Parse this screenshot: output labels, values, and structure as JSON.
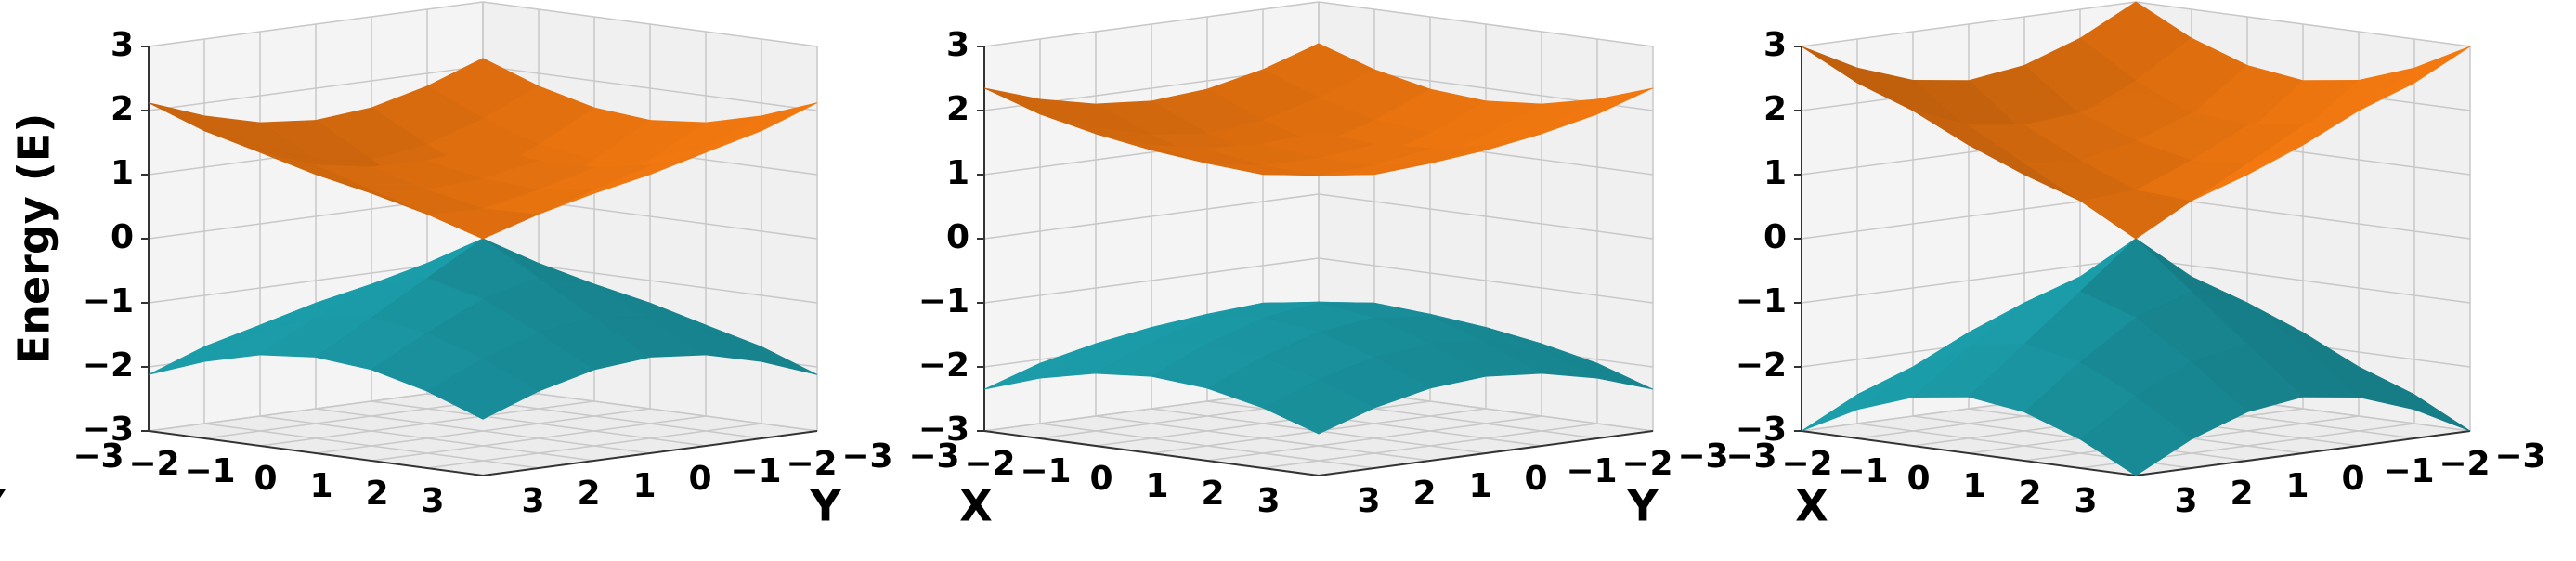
{
  "chart_data": [
    {
      "type": "surface",
      "zlabel": "Energy (E)",
      "xlabel": "X",
      "ylabel": "Y",
      "x": [
        -3,
        -2,
        -1,
        0,
        1,
        2,
        3
      ],
      "y": [
        -3,
        -2,
        -1,
        0,
        1,
        2,
        3
      ],
      "xlim": [
        -3,
        3
      ],
      "ylim": [
        -3,
        3
      ],
      "zlim": [
        -3,
        3
      ],
      "xticks": [
        {
          "value": -3,
          "label": "−3"
        },
        {
          "value": -2,
          "label": "−2"
        },
        {
          "value": -1,
          "label": "−1"
        },
        0,
        1,
        2,
        3
      ],
      "yticks": [
        {
          "value": -3,
          "label": "−3"
        },
        {
          "value": -2,
          "label": "−2"
        },
        {
          "value": -1,
          "label": "−1"
        },
        0,
        1,
        2,
        3
      ],
      "zticks": [
        {
          "value": -3,
          "label": "−3"
        },
        {
          "value": -2,
          "label": "−2"
        },
        {
          "value": -1,
          "label": "−1"
        },
        0,
        1,
        2,
        3
      ],
      "grid": true,
      "series": [
        {
          "color": "#1a96a2",
          "z": [
            [
              -2.12,
              -1.8,
              -1.58,
              -1.5,
              -1.58,
              -1.8,
              -2.12
            ],
            [
              -1.8,
              -1.41,
              -1.12,
              -1,
              -1.12,
              -1.41,
              -1.8
            ],
            [
              -1.58,
              -1.12,
              -0.71,
              -0.5,
              -0.71,
              -1.12,
              -1.58
            ],
            [
              -1.5,
              -1,
              -0.5,
              0,
              -0.5,
              -1,
              -1.5
            ],
            [
              -1.58,
              -1.12,
              -0.71,
              -0.5,
              -0.71,
              -1.12,
              -1.58
            ],
            [
              -1.8,
              -1.41,
              -1.12,
              -1,
              -1.12,
              -1.41,
              -1.8
            ],
            [
              -2.12,
              -1.8,
              -1.58,
              -1.5,
              -1.58,
              -1.8,
              -2.12
            ]
          ]
        },
        {
          "color": "#e8730f",
          "z": [
            [
              2.12,
              1.8,
              1.58,
              1.5,
              1.58,
              1.8,
              2.12
            ],
            [
              1.8,
              1.41,
              1.12,
              1,
              1.12,
              1.41,
              1.8
            ],
            [
              1.58,
              1.12,
              0.71,
              0.5,
              0.71,
              1.12,
              1.58
            ],
            [
              1.5,
              1,
              0.5,
              0,
              0.5,
              1,
              1.5
            ],
            [
              1.58,
              1.12,
              0.71,
              0.5,
              0.71,
              1.12,
              1.58
            ],
            [
              1.8,
              1.41,
              1.12,
              1,
              1.12,
              1.41,
              1.8
            ],
            [
              2.12,
              1.8,
              1.58,
              1.5,
              1.58,
              1.8,
              2.12
            ]
          ]
        }
      ]
    },
    {
      "type": "surface",
      "xlabel": "X",
      "ylabel": "Y",
      "x": [
        -3,
        -2,
        -1,
        0,
        1,
        2,
        3
      ],
      "y": [
        -3,
        -2,
        -1,
        0,
        1,
        2,
        3
      ],
      "xlim": [
        -3,
        3
      ],
      "ylim": [
        -3,
        3
      ],
      "zlim": [
        -3,
        3
      ],
      "xticks": [
        {
          "value": -3,
          "label": "−3"
        },
        {
          "value": -2,
          "label": "−2"
        },
        {
          "value": -1,
          "label": "−1"
        },
        0,
        1,
        2,
        3
      ],
      "yticks": [
        {
          "value": -3,
          "label": "−3"
        },
        {
          "value": -2,
          "label": "−2"
        },
        {
          "value": -1,
          "label": "−1"
        },
        0,
        1,
        2,
        3
      ],
      "zticks": [
        {
          "value": -3,
          "label": "−3"
        },
        {
          "value": -2,
          "label": "−2"
        },
        {
          "value": -1,
          "label": "−1"
        },
        0,
        1,
        2,
        3
      ],
      "grid": true,
      "series": [
        {
          "color": "#1a96a2",
          "z": [
            [
              -2.35,
              -2.06,
              -1.87,
              -1.8,
              -1.87,
              -2.06,
              -2.35
            ],
            [
              -2.06,
              -1.73,
              -1.5,
              -1.41,
              -1.5,
              -1.73,
              -2.06
            ],
            [
              -1.87,
              -1.5,
              -1.22,
              -1.12,
              -1.22,
              -1.5,
              -1.87
            ],
            [
              -1.8,
              -1.41,
              -1.12,
              -1,
              -1.12,
              -1.41,
              -1.8
            ],
            [
              -1.87,
              -1.5,
              -1.22,
              -1.12,
              -1.22,
              -1.5,
              -1.87
            ],
            [
              -2.06,
              -1.73,
              -1.5,
              -1.41,
              -1.5,
              -1.73,
              -2.06
            ],
            [
              -2.35,
              -2.06,
              -1.87,
              -1.8,
              -1.87,
              -2.06,
              -2.35
            ]
          ]
        },
        {
          "color": "#e8730f",
          "z": [
            [
              2.35,
              2.06,
              1.87,
              1.8,
              1.87,
              2.06,
              2.35
            ],
            [
              2.06,
              1.73,
              1.5,
              1.41,
              1.5,
              1.73,
              2.06
            ],
            [
              1.87,
              1.5,
              1.22,
              1.12,
              1.22,
              1.5,
              1.87
            ],
            [
              1.8,
              1.41,
              1.12,
              1,
              1.12,
              1.41,
              1.8
            ],
            [
              1.87,
              1.5,
              1.22,
              1.12,
              1.22,
              1.5,
              1.87
            ],
            [
              2.06,
              1.73,
              1.5,
              1.41,
              1.5,
              1.73,
              2.06
            ],
            [
              2.35,
              2.06,
              1.87,
              1.8,
              1.87,
              2.06,
              2.35
            ]
          ]
        }
      ]
    },
    {
      "type": "surface",
      "xlabel": "X",
      "ylabel": "Y",
      "x": [
        -3,
        -2,
        -1,
        0,
        1,
        2,
        3
      ],
      "y": [
        -3,
        -2,
        -1,
        0,
        1,
        2,
        3
      ],
      "xlim": [
        -3,
        3
      ],
      "ylim": [
        -3,
        3
      ],
      "zlim": [
        -3,
        3
      ],
      "xticks": [
        {
          "value": -3,
          "label": "−3"
        },
        {
          "value": -2,
          "label": "−2"
        },
        {
          "value": -1,
          "label": "−1"
        },
        0,
        1,
        2,
        3
      ],
      "yticks": [
        {
          "value": -3,
          "label": "−3"
        },
        {
          "value": -2,
          "label": "−2"
        },
        {
          "value": -1,
          "label": "−1"
        },
        0,
        1,
        2,
        3
      ],
      "zticks": [
        {
          "value": -3,
          "label": "−3"
        },
        {
          "value": -2,
          "label": "−2"
        },
        {
          "value": -1,
          "label": "−1"
        },
        0,
        1,
        2,
        3
      ],
      "grid": true,
      "series": [
        {
          "color": "#1a96a2",
          "z": [
            [
              -3,
              -2.55,
              -2.24,
              -2.12,
              -2.24,
              -2.55,
              -3
            ],
            [
              -2.55,
              -2,
              -1.58,
              -1.41,
              -1.58,
              -2,
              -2.55
            ],
            [
              -2.24,
              -1.58,
              -1,
              -0.71,
              -1,
              -1.58,
              -2.24
            ],
            [
              -2.12,
              -1.41,
              -0.71,
              0,
              -0.71,
              -1.41,
              -2.12
            ],
            [
              -2.24,
              -1.58,
              -1,
              -0.71,
              -1,
              -1.58,
              -2.24
            ],
            [
              -2.55,
              -2,
              -1.58,
              -1.41,
              -1.58,
              -2,
              -2.55
            ],
            [
              -3,
              -2.55,
              -2.24,
              -2.12,
              -2.24,
              -2.55,
              -3
            ]
          ]
        },
        {
          "color": "#e8730f",
          "z": [
            [
              3,
              2.55,
              2.24,
              2.12,
              2.24,
              2.55,
              3
            ],
            [
              2.55,
              2,
              1.58,
              1.41,
              1.58,
              2,
              2.55
            ],
            [
              2.24,
              1.58,
              1,
              0.71,
              1,
              1.58,
              2.24
            ],
            [
              2.12,
              1.41,
              0.71,
              0,
              0.71,
              1.41,
              2.12
            ],
            [
              2.24,
              1.58,
              1,
              0.71,
              1,
              1.58,
              2.24
            ],
            [
              2.55,
              2,
              1.58,
              1.41,
              1.58,
              2,
              2.55
            ],
            [
              3,
              2.55,
              2.24,
              2.12,
              2.24,
              2.55,
              3
            ]
          ]
        }
      ]
    }
  ]
}
